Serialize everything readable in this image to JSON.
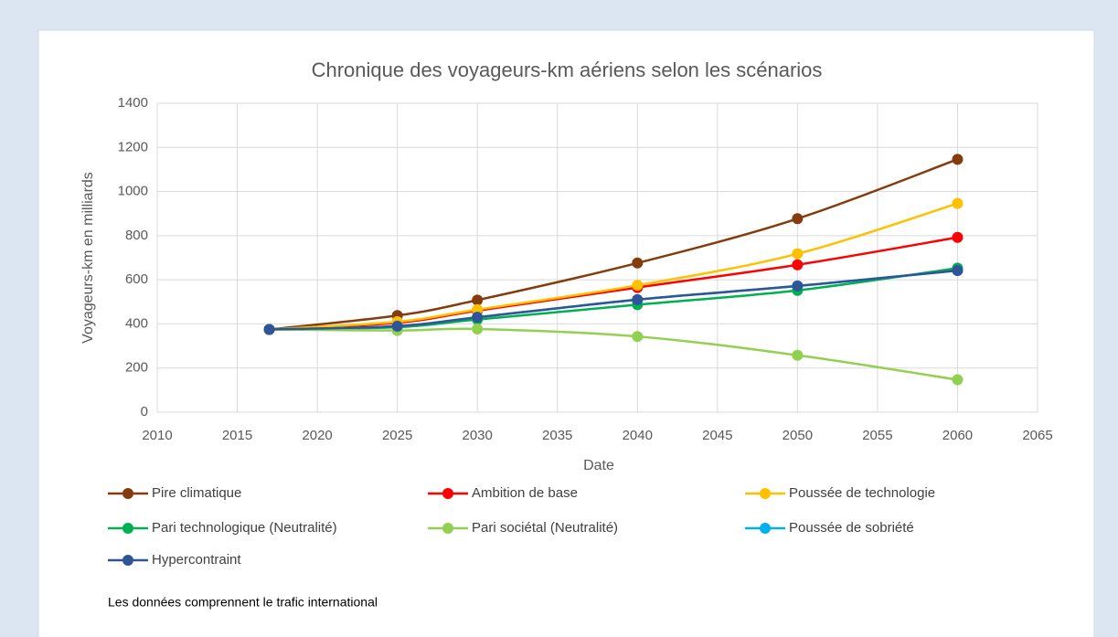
{
  "chart_data": {
    "type": "line",
    "title": "Chronique des voyageurs-km aériens selon les scénarios",
    "x_label": "Date",
    "y_label": "Voyageurs-km en milliards",
    "note": "Les données comprennent le trafic international",
    "x": [
      2017,
      2025,
      2030,
      2040,
      2050,
      2060
    ],
    "series": [
      {
        "name": "Pire climatique",
        "color": "#843c0c",
        "values": [
          375,
          438,
          508,
          676,
          877,
          1146
        ]
      },
      {
        "name": "Ambition de base",
        "color": "#ff0000",
        "values": [
          375,
          405,
          460,
          565,
          668,
          792
        ]
      },
      {
        "name": "Poussée de technologie",
        "color": "#ffc000",
        "values": [
          375,
          410,
          465,
          575,
          718,
          946
        ]
      },
      {
        "name": "Pari technologique (Neutralité)",
        "color": "#00b050",
        "values": [
          375,
          385,
          420,
          487,
          552,
          653
        ]
      },
      {
        "name": "Pari sociétal (Neutralité)",
        "color": "#92d050",
        "values": [
          375,
          370,
          377,
          343,
          258,
          147
        ]
      },
      {
        "name": "Poussée de sobriété",
        "color": "#00b0f0",
        "values": [
          375,
          390,
          430,
          510,
          572,
          642
        ]
      },
      {
        "name": "Hypercontraint",
        "color": "#2f5597",
        "values": [
          375,
          390,
          430,
          510,
          572,
          642
        ]
      }
    ],
    "xlim": [
      2010,
      2065
    ],
    "xticks": [
      2010,
      2015,
      2020,
      2025,
      2030,
      2035,
      2040,
      2045,
      2050,
      2055,
      2060,
      2065
    ],
    "ylim": [
      0,
      1400
    ],
    "yticks": [
      0,
      200,
      400,
      600,
      800,
      1000,
      1200,
      1400
    ],
    "grid": true,
    "legend": "bottom",
    "smooth": true
  }
}
